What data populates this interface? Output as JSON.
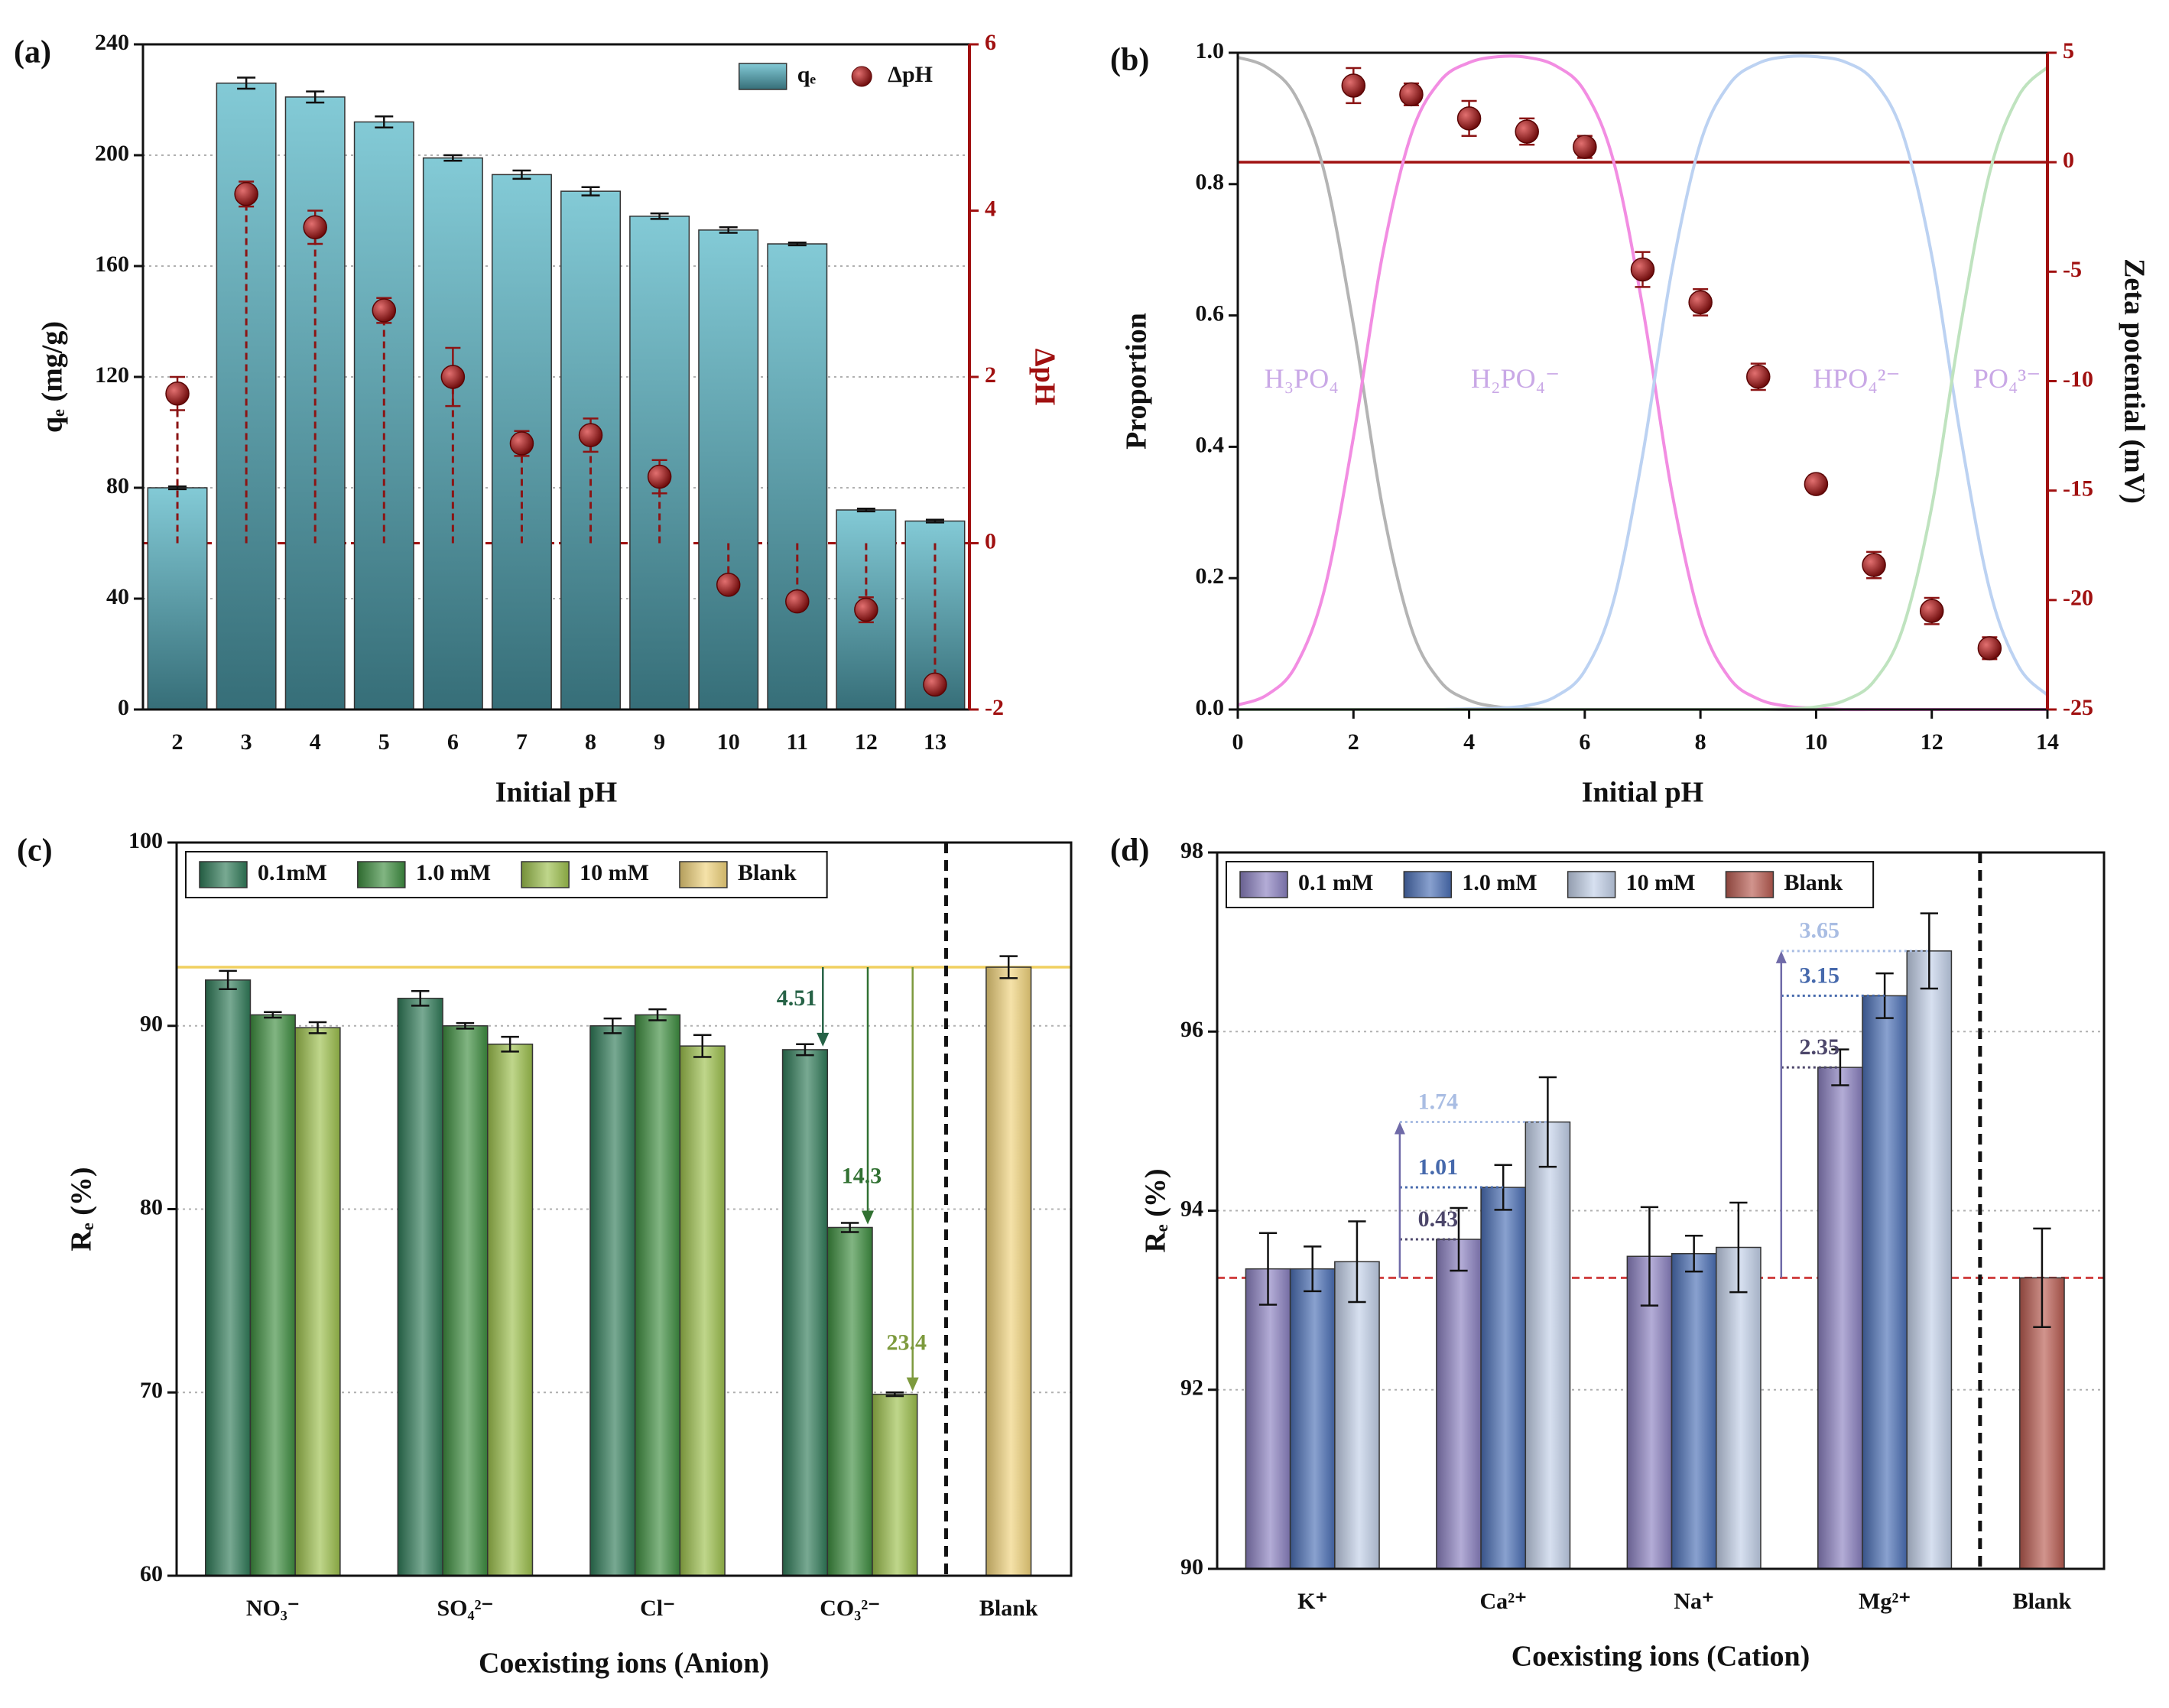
{
  "chart_data": [
    {
      "type": "bar",
      "title": "(a)",
      "x_label": "Initial pH",
      "y_label": "qₑ (mg/g)",
      "y2_label": "ΔpH",
      "categories": [
        "2",
        "3",
        "4",
        "5",
        "6",
        "7",
        "8",
        "9",
        "10",
        "11",
        "12",
        "13"
      ],
      "series": [
        {
          "name": "qₑ",
          "color": "#5ab8c8",
          "gradient": "vertical",
          "values": [
            80,
            226,
            221,
            212,
            199,
            193,
            187,
            178,
            173,
            168,
            72,
            68
          ],
          "errors": [
            0.5,
            2,
            2,
            2,
            1,
            1.5,
            1.5,
            1,
            1,
            0.5,
            0.5,
            0.5
          ]
        },
        {
          "name": "ΔpH",
          "type": "scatter",
          "axis": "y2",
          "color": "#8b1414",
          "stems": true,
          "values": [
            1.8,
            4.2,
            3.8,
            2.8,
            2.0,
            1.2,
            1.3,
            0.8,
            -0.5,
            -0.7,
            -0.8,
            -1.7
          ],
          "errors": [
            0.2,
            0.15,
            0.2,
            0.15,
            0.35,
            0.15,
            0.2,
            0.2,
            0.1,
            0.1,
            0.15,
            0.1
          ]
        }
      ],
      "ylim": [
        0,
        240
      ],
      "yticks": [
        0,
        40,
        80,
        120,
        160,
        200,
        240
      ],
      "y2lim": [
        -2,
        6
      ],
      "y2ticks": [
        -2,
        0,
        2,
        4,
        6
      ],
      "y2_color": "#a01010",
      "reference_lines": [
        {
          "axis": "y2",
          "value": 0,
          "color": "#a01010",
          "dashed": true
        }
      ],
      "grid": true,
      "legend": "upper right"
    },
    {
      "type": "line",
      "title": "(b)",
      "x_label": "Initial pH",
      "y_label": "Proportion",
      "y2_label": "Zeta potential (mV)",
      "x": [
        0,
        0.5,
        1,
        1.5,
        2,
        2.5,
        3,
        3.5,
        4,
        4.5,
        5,
        5.5,
        6,
        6.5,
        7,
        7.5,
        8,
        8.5,
        9,
        9.5,
        10,
        10.5,
        11,
        11.5,
        12,
        12.5,
        13,
        13.5,
        14
      ],
      "series": [
        {
          "name": "H₃PO₄",
          "color": "#b4b4b4",
          "label_color": "#c9a8e6",
          "values": [
            0.993,
            0.978,
            0.934,
            0.817,
            0.585,
            0.309,
            0.124,
            0.043,
            0.014,
            0.004,
            0.001,
            0,
            0,
            0,
            0,
            0,
            0,
            0,
            0,
            0,
            0,
            0,
            0,
            0,
            0,
            0,
            0,
            0,
            0
          ]
        },
        {
          "name": "H₂PO₄⁻",
          "color": "#f28de2",
          "label_color": "#c9a8e6",
          "values": [
            0.007,
            0.022,
            0.066,
            0.183,
            0.415,
            0.691,
            0.876,
            0.957,
            0.985,
            0.994,
            0.993,
            0.98,
            0.941,
            0.834,
            0.613,
            0.334,
            0.137,
            0.048,
            0.016,
            0.005,
            0.002,
            0,
            0,
            0,
            0,
            0,
            0,
            0,
            0
          ]
        },
        {
          "name": "HPO₄²⁻",
          "color": "#bcd2f2",
          "label_color": "#c9a8e6",
          "values": [
            0,
            0,
            0,
            0,
            0,
            0,
            0,
            0,
            0.001,
            0.002,
            0.006,
            0.02,
            0.059,
            0.166,
            0.387,
            0.666,
            0.863,
            0.952,
            0.984,
            0.994,
            0.994,
            0.986,
            0.957,
            0.876,
            0.691,
            0.415,
            0.183,
            0.066,
            0.022
          ]
        },
        {
          "name": "PO₄³⁻",
          "color": "#bfe3bf",
          "label_color": "#c9a8e6",
          "values": [
            0,
            0,
            0,
            0,
            0,
            0,
            0,
            0,
            0,
            0,
            0,
            0,
            0,
            0,
            0,
            0,
            0,
            0,
            0,
            0.001,
            0.004,
            0.014,
            0.043,
            0.124,
            0.309,
            0.585,
            0.817,
            0.934,
            0.978
          ]
        },
        {
          "type": "scatter",
          "axis": "y2",
          "color": "#8b1414",
          "x": [
            2,
            3,
            4,
            5,
            6,
            7,
            8,
            9,
            10,
            11,
            12,
            13
          ],
          "values": [
            3.5,
            3.1,
            2.0,
            1.4,
            0.7,
            -4.9,
            -6.4,
            -9.8,
            -14.7,
            -18.4,
            -20.5,
            -22.2
          ],
          "errors": [
            0.8,
            0.5,
            0.8,
            0.6,
            0.5,
            0.8,
            0.6,
            0.6,
            0.4,
            0.6,
            0.6,
            0.5
          ]
        }
      ],
      "xlim": [
        0,
        14
      ],
      "xticks": [
        0,
        2,
        4,
        6,
        8,
        10,
        12,
        14
      ],
      "ylim": [
        0,
        1
      ],
      "yticks": [
        {
          "value": 0,
          "label": "0.0"
        },
        0.2,
        0.4,
        0.6,
        0.8,
        {
          "value": 1,
          "label": "1.0"
        }
      ],
      "y2lim": [
        -25,
        5
      ],
      "y2ticks": [
        -25,
        -20,
        -15,
        -10,
        -5,
        0,
        5
      ],
      "y2_color": "#a01010",
      "reference_lines": [
        {
          "axis": "y2",
          "value": 0,
          "color": "#a01010"
        }
      ],
      "grid": false,
      "legend": "none"
    },
    {
      "type": "bar",
      "title": "(c)",
      "x_label": "Coexisting ions (Anion)",
      "y_label": "Rₑ (%)",
      "categories": [
        "NO₃⁻",
        "SO₄²⁻",
        "Cl⁻",
        "CO₃²⁻",
        "Blank"
      ],
      "series": [
        {
          "name": "0.1mM",
          "color": "#2f7a58",
          "gradient": "horizontal",
          "values": [
            92.5,
            91.5,
            90.0,
            88.7,
            null
          ],
          "errors": [
            0.5,
            0.4,
            0.4,
            0.3,
            null
          ]
        },
        {
          "name": "1.0 mM",
          "color": "#3d8d3f",
          "gradient": "horizontal",
          "values": [
            90.6,
            90.0,
            90.6,
            79.0,
            null
          ],
          "errors": [
            0.15,
            0.15,
            0.3,
            0.25,
            null
          ]
        },
        {
          "name": "10 mM",
          "color": "#9cc04c",
          "gradient": "horizontal",
          "values": [
            89.9,
            89.0,
            88.9,
            69.9,
            null
          ],
          "errors": [
            0.3,
            0.4,
            0.6,
            0.1,
            null
          ]
        },
        {
          "name": "Blank",
          "color": "#f0d27a",
          "gradient": "horizontal",
          "values": [
            null,
            null,
            null,
            null,
            93.2
          ],
          "errors": [
            null,
            null,
            null,
            null,
            0.6
          ]
        }
      ],
      "ylim": [
        60,
        100
      ],
      "yticks": [
        60,
        70,
        80,
        90,
        100
      ],
      "reference_lines": [
        {
          "axis": "y",
          "value": 93.2,
          "color": "#f0d060"
        }
      ],
      "separator_before": 4,
      "annotation_style": "drop",
      "annotations": [
        "4.51",
        "14.3",
        "23.4"
      ],
      "grid": true,
      "legend": "upper left",
      "legend_frame": true
    },
    {
      "type": "bar",
      "title": "(d)",
      "x_label": "Coexisting ions (Cation)",
      "y_label": "Rₑ (%)",
      "categories": [
        "K⁺",
        "Ca²⁺",
        "Na⁺",
        "Mg²⁺",
        "Blank"
      ],
      "series": [
        {
          "name": "0.1 mM",
          "color": "#8a80c0",
          "gradient": "horizontal",
          "values": [
            93.35,
            93.68,
            93.49,
            95.6,
            null
          ],
          "errors": [
            0.4,
            0.35,
            0.55,
            0.2,
            null
          ]
        },
        {
          "name": "1.0 mM",
          "color": "#4a6fb5",
          "gradient": "horizontal",
          "values": [
            93.35,
            94.26,
            93.52,
            96.4,
            null
          ],
          "errors": [
            0.25,
            0.25,
            0.2,
            0.25,
            null
          ]
        },
        {
          "name": "10 mM",
          "color": "#c2d0e8",
          "gradient": "horizontal",
          "values": [
            93.43,
            94.99,
            93.59,
            96.9,
            null
          ],
          "errors": [
            0.45,
            0.5,
            0.5,
            0.42,
            null
          ]
        },
        {
          "name": "Blank",
          "color": "#b85a50",
          "gradient": "horizontal",
          "values": [
            null,
            null,
            null,
            null,
            93.25
          ],
          "errors": [
            null,
            null,
            null,
            null,
            0.55
          ]
        }
      ],
      "ylim": [
        90,
        98
      ],
      "yticks": [
        90,
        92,
        94,
        96,
        98
      ],
      "reference_lines": [
        {
          "axis": "y",
          "value": 93.25,
          "color": "#d04040",
          "dashed": true
        }
      ],
      "separator_before": 4,
      "annotation_style": "bracket",
      "annotations": [
        "0.43",
        "1.01",
        "1.74",
        "2.35",
        "3.15",
        "3.65"
      ],
      "grid": true,
      "legend": "upper left",
      "legend_frame": true
    }
  ]
}
